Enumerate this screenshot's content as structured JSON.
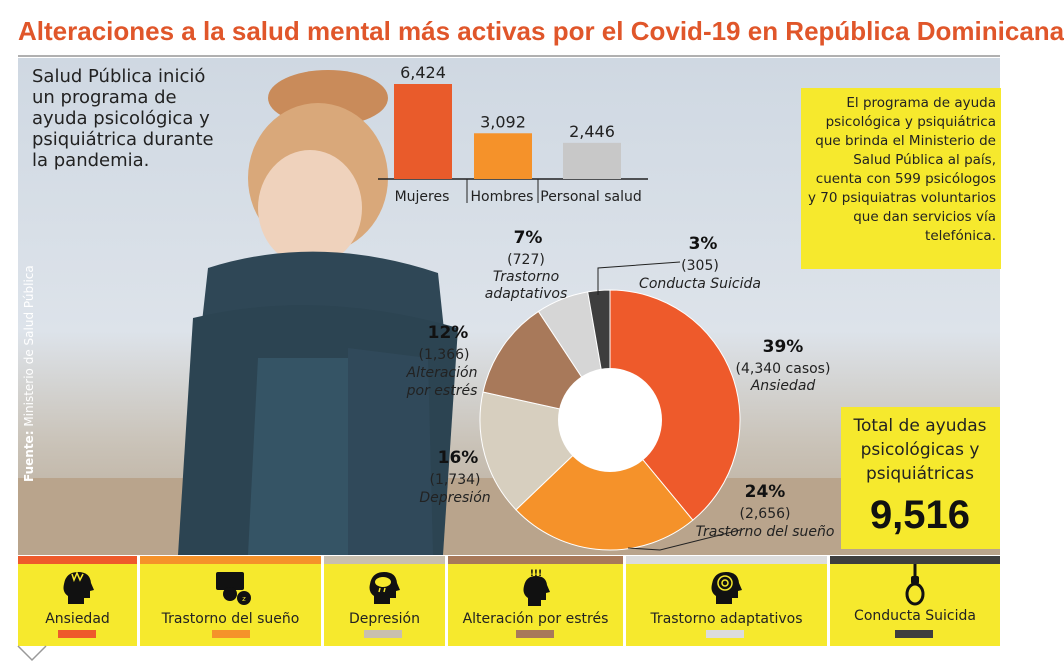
{
  "title": "Alteraciones a la salud mental más activas por el Covid-19 en República Dominicana",
  "intro": "Salud Pública inició\nun programa de\nayuda psicológica y\npsiquiátrica durante\nla pandemia.",
  "source_label": "Fuente:",
  "source_text": "Ministerio de Salud Pública",
  "info_box": "El programa de ayuda psicológica y psiquiátrica que brinda el Ministerio de Salud Pública al país, cuenta con 599 psicólogos y 70 psiquiatras voluntarios que dan servicios vía telefónica.",
  "total": {
    "label": "Total de ayudas psicológicas y psiquiátricas",
    "value": "9,516"
  },
  "chart_data": [
    {
      "type": "bar",
      "categories": [
        "Mujeres",
        "Hombres",
        "Personal salud"
      ],
      "values": [
        6424,
        3092,
        2446
      ],
      "value_labels": [
        "6,424",
        "3,092",
        "2,446"
      ],
      "colors": [
        "#e95b2b",
        "#f5922a",
        "#c8c8c8"
      ]
    },
    {
      "type": "pie",
      "donut": true,
      "slices": [
        {
          "name": "Ansiedad",
          "percent": 39,
          "percent_label": "39%",
          "count_label": "(4,340 casos)",
          "value": 4340,
          "color": "#ee5a2b"
        },
        {
          "name": "Trastorno del sueño",
          "percent": 24,
          "percent_label": "24%",
          "count_label": "(2,656)",
          "value": 2656,
          "color": "#f5922a"
        },
        {
          "name": "Depresión",
          "percent": 16,
          "percent_label": "16%",
          "count_label": "(1,734)",
          "value": 1734,
          "color": "#d7cfbf"
        },
        {
          "name": "Alteración por estrés",
          "percent": 12,
          "percent_label": "12%",
          "count_label": "(1,366)",
          "value": 1366,
          "color": "#a8795a"
        },
        {
          "name": "Trastorno adaptativos",
          "percent": 7,
          "percent_label": "7%",
          "count_label": "(727)",
          "value": 727,
          "color": "#d6d6d6"
        },
        {
          "name": "Conducta Suicida",
          "percent": 3,
          "percent_label": "3%",
          "count_label": "(305)",
          "value": 305,
          "color": "#3e3e3e"
        }
      ],
      "donut_labels": {
        "ansiedad": "Ansiedad",
        "sueno": "Trastorno del sueño",
        "depresion": "Depresión",
        "estres_1": "Alteración",
        "estres_2": "por estrés",
        "adapt_1": "Trastorno",
        "adapt_2": "adaptativos",
        "suicida": "Conducta Suicida"
      }
    }
  ],
  "legend": [
    {
      "label": "Ansiedad",
      "color": "#ee5a2b",
      "icon": "head-anxiety-icon"
    },
    {
      "label": "Trastorno del sueño",
      "color": "#f5922a",
      "icon": "sleep-disorder-icon"
    },
    {
      "label": "Depresión",
      "color": "#c9bfae",
      "icon": "head-cloud-icon"
    },
    {
      "label": "Alteración por estrés",
      "color": "#a8795a",
      "icon": "head-stress-icon"
    },
    {
      "label": "Trastorno adaptativos",
      "color": "#dcdcdc",
      "icon": "head-maze-icon"
    },
    {
      "label": "Conducta Suicida",
      "color": "#3e3e3e",
      "icon": "noose-icon"
    }
  ]
}
